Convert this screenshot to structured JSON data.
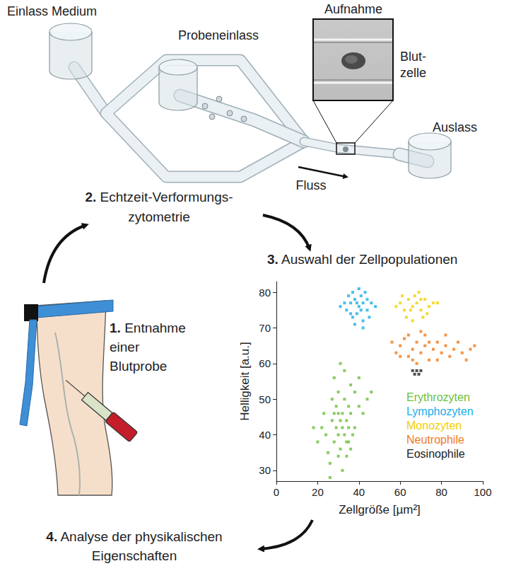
{
  "labels": {
    "inlet_medium": "Einlass Medium",
    "sample_inlet": "Probeneinlass",
    "image_title": "Aufnahme",
    "cell": [
      "Blut-",
      "zelle"
    ],
    "outlet": "Auslass",
    "flow": "Fluss"
  },
  "steps": [
    {
      "number": "1.",
      "lines": [
        "Entnahme",
        "einer",
        "Blutprobe"
      ]
    },
    {
      "number": "2.",
      "lines": [
        "Echtzeit-Verformungs-",
        "zytometrie"
      ]
    },
    {
      "number": "3.",
      "lines": [
        "Auswahl der Zellpopulationen"
      ]
    },
    {
      "number": "4.",
      "lines": [
        "Analyse der physikalischen",
        "Eigenschaften"
      ]
    }
  ],
  "chart_data": {
    "type": "scatter",
    "marker": "square",
    "x_label": "Zellgröße [µm²]",
    "y_label": "Helligkeit [a.u.]",
    "xlim": [
      0,
      100
    ],
    "xticks": [
      0,
      20,
      40,
      60,
      80,
      100
    ],
    "ylim": [
      27,
      83
    ],
    "yticks": [
      30,
      40,
      50,
      60,
      70,
      80
    ],
    "grid": false,
    "legend": "lower right",
    "series": [
      {
        "name": "Erythrozyten",
        "color": "#6cbf3a",
        "values": [
          [
            25,
            35
          ],
          [
            28,
            38
          ],
          [
            30,
            40
          ],
          [
            32,
            42
          ],
          [
            34,
            44
          ],
          [
            36,
            46
          ],
          [
            29,
            48
          ],
          [
            33,
            50
          ],
          [
            31,
            36
          ],
          [
            35,
            38
          ],
          [
            27,
            44
          ],
          [
            38,
            42
          ],
          [
            24,
            40
          ],
          [
            30,
            52
          ],
          [
            36,
            54
          ],
          [
            40,
            48
          ],
          [
            22,
            42
          ],
          [
            26,
            32
          ],
          [
            32,
            30
          ],
          [
            34,
            34
          ],
          [
            28,
            56
          ],
          [
            33,
            58
          ],
          [
            38,
            52
          ],
          [
            42,
            46
          ],
          [
            44,
            50
          ],
          [
            30,
            46
          ],
          [
            27,
            50
          ],
          [
            35,
            48
          ],
          [
            37,
            40
          ],
          [
            23,
            46
          ],
          [
            20,
            38
          ],
          [
            31,
            44
          ],
          [
            33,
            40
          ],
          [
            29,
            42
          ],
          [
            36,
            36
          ],
          [
            40,
            56
          ],
          [
            31,
            60
          ],
          [
            26,
            28
          ],
          [
            46,
            52
          ],
          [
            18,
            42
          ],
          [
            32,
            46
          ],
          [
            34,
            38
          ],
          [
            30,
            34
          ],
          [
            28,
            46
          ],
          [
            35,
            42
          ]
        ]
      },
      {
        "name": "Lymphozyten",
        "color": "#1aaee6",
        "values": [
          [
            34,
            75
          ],
          [
            36,
            77
          ],
          [
            38,
            78
          ],
          [
            40,
            76
          ],
          [
            42,
            77
          ],
          [
            44,
            75
          ],
          [
            37,
            73
          ],
          [
            39,
            74
          ],
          [
            41,
            79
          ],
          [
            43,
            80
          ],
          [
            35,
            79
          ],
          [
            46,
            77
          ],
          [
            38,
            71
          ],
          [
            42,
            72
          ],
          [
            40,
            81
          ],
          [
            33,
            77
          ],
          [
            45,
            73
          ],
          [
            39,
            77
          ],
          [
            41,
            75
          ],
          [
            36,
            74
          ],
          [
            44,
            78
          ],
          [
            31,
            76
          ],
          [
            48,
            76
          ],
          [
            37,
            80
          ],
          [
            42,
            70
          ]
        ]
      },
      {
        "name": "Monozyten",
        "color": "#f2d000",
        "values": [
          [
            58,
            76
          ],
          [
            60,
            77
          ],
          [
            62,
            75
          ],
          [
            64,
            78
          ],
          [
            66,
            76
          ],
          [
            68,
            77
          ],
          [
            70,
            75
          ],
          [
            72,
            78
          ],
          [
            74,
            76
          ],
          [
            76,
            77
          ],
          [
            63,
            73
          ],
          [
            67,
            79
          ],
          [
            71,
            73
          ],
          [
            65,
            75
          ],
          [
            69,
            80
          ],
          [
            61,
            79
          ],
          [
            73,
            74
          ],
          [
            78,
            77
          ],
          [
            66,
            72
          ],
          [
            70,
            78
          ]
        ]
      },
      {
        "name": "Neutrophile",
        "color": "#f07a1a",
        "values": [
          [
            56,
            66
          ],
          [
            58,
            63
          ],
          [
            60,
            65
          ],
          [
            62,
            67
          ],
          [
            64,
            62
          ],
          [
            66,
            64
          ],
          [
            68,
            66
          ],
          [
            70,
            63
          ],
          [
            72,
            65
          ],
          [
            74,
            61
          ],
          [
            76,
            64
          ],
          [
            78,
            66
          ],
          [
            80,
            63
          ],
          [
            82,
            65
          ],
          [
            84,
            62
          ],
          [
            86,
            64
          ],
          [
            88,
            66
          ],
          [
            90,
            63
          ],
          [
            94,
            64
          ],
          [
            64,
            68
          ],
          [
            68,
            60
          ],
          [
            72,
            68
          ],
          [
            66,
            61
          ],
          [
            70,
            69
          ],
          [
            74,
            66
          ],
          [
            78,
            61
          ],
          [
            82,
            68
          ],
          [
            60,
            62
          ],
          [
            92,
            61
          ],
          [
            96,
            65
          ]
        ]
      },
      {
        "name": "Eosinophile",
        "color": "#222222",
        "values": [
          [
            66,
            58
          ],
          [
            67,
            57
          ],
          [
            68,
            58
          ],
          [
            69,
            57
          ],
          [
            70,
            58
          ]
        ]
      }
    ]
  }
}
